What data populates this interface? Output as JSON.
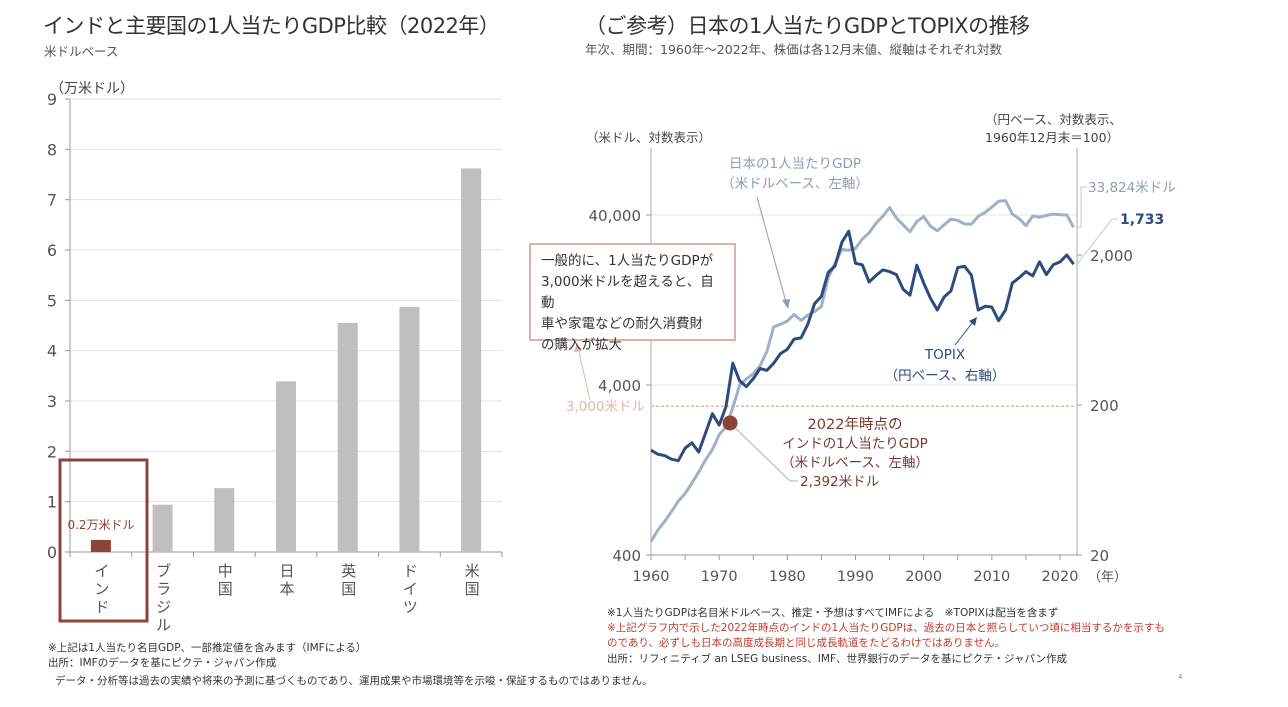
{
  "left": {
    "title": "インドと主要国の1人当たりGDP比較（2022年）",
    "subtitle": "米ドルベース",
    "unit_label": "（万米ドル）",
    "notes": [
      "※上記は1人当たり名目GDP、一部推定値を含みます（IMFによる）",
      "出所：IMFのデータを基にピクテ・ジャパン作成"
    ]
  },
  "right": {
    "title": "（ご参考）日本の1人当たりGDPとTOPIXの推移",
    "subtitle": "年次、期間：1960年～2022年、株価は各12月末値、縦軸はそれぞれ対数",
    "left_axis_label": "（米ドル、対数表示）",
    "right_axis_label_1": "（円ベース、対数表示、",
    "right_axis_label_2": "1960年12月末＝100）",
    "gdp_label_1": "日本の1人当たりGDP",
    "gdp_label_2": "（米ドルベース、左軸）",
    "topix_label_1": "TOPIX",
    "topix_label_2": "（円ベース、右軸）",
    "gdp_end_label": "33,824米ドル",
    "topix_end_label": "1,733",
    "callout_lines": [
      "一般的に、1人当たりGDPが",
      "3,000米ドルを超えると、自動",
      "車や家電などの耐久消費財",
      "の購入が拡大"
    ],
    "threshold_label": "3,000米ドル",
    "india_label_1": "2022年時点の",
    "india_label_2": "インドの1人当たりGDP",
    "india_label_3": "（米ドルベース、左軸）",
    "india_value_label": "2,392米ドル",
    "notes": [
      "※1人当たりGDPは名目米ドルベース、推定・予想はすべてIMFによる　※TOPIXは配当を含まず"
    ],
    "notes_red": [
      "※上記グラフ内で示した2022年時点のインドの1人当たりGDPは、過去の日本と照らしていつ頃に相当するかを示すも",
      "のであり、必ずしも日本の高度成長期と同じ成長軌道をたどるわけではありません。"
    ],
    "source": "出所：リフィニティブ an LSEG business、IMF、世界銀行のデータを基にピクテ・ジャパン作成"
  },
  "disclaimer": "データ・分析等は過去の実績や将来の予測に基づくものであり、運用成果や市場環境等を示唆・保証するものではありません。",
  "page_marker": "4",
  "colors": {
    "bar_gray": "#bfbfbf",
    "india": "#8b4436",
    "gdp_line": "#9fb0c8",
    "topix_line": "#2e4b7e",
    "threshold": "#e2b6aa",
    "callout_border": "#d9b3a6",
    "india_text": "#7a3a30",
    "note_red": "#c0392b"
  },
  "chart_data": [
    {
      "type": "bar",
      "title": "インドと主要国の1人当たりGDP比較（2022年）",
      "subtitle": "米ドルベース",
      "xlabel": "",
      "ylabel": "（万米ドル）",
      "ylim": [
        0,
        9
      ],
      "yticks": [
        "0",
        "1",
        "2",
        "3",
        "4",
        "5",
        "6",
        "7",
        "8",
        "9"
      ],
      "grid": true,
      "categories": [
        "インド",
        "ブラジル",
        "中国",
        "日本",
        "英国",
        "ドイツ",
        "米国"
      ],
      "values": [
        0.24,
        0.94,
        1.27,
        3.39,
        4.55,
        4.87,
        7.62
      ],
      "highlight": "インド",
      "data_labels": [
        {
          "category": "インド",
          "text": "0.2万米ドル"
        }
      ]
    },
    {
      "type": "line",
      "title": "（ご参考）日本の1人当たりGDPとTOPIXの推移",
      "subtitle": "年次、期間：1960年～2022年、株価は各12月末値、縦軸はそれぞれ対数",
      "xlabel": "（年）",
      "xlim": [
        1960,
        2022
      ],
      "xticks": [
        "1960",
        "1970",
        "1980",
        "1990",
        "2000",
        "2010",
        "2020"
      ],
      "y_left": {
        "label": "（米ドル、対数表示）",
        "scale": "log",
        "lim": [
          400,
          100000
        ],
        "ticks": [
          "400",
          "4,000",
          "40,000"
        ]
      },
      "y_right": {
        "label": "（円ベース、対数表示、1960年12月末＝100）",
        "scale": "log",
        "lim": [
          20,
          5000
        ],
        "ticks": [
          "20",
          "200",
          "2,000"
        ]
      },
      "grid": true,
      "x": [
        1960,
        1961,
        1962,
        1963,
        1964,
        1965,
        1966,
        1967,
        1968,
        1969,
        1970,
        1971,
        1972,
        1973,
        1974,
        1975,
        1976,
        1977,
        1978,
        1979,
        1980,
        1981,
        1982,
        1983,
        1984,
        1985,
        1986,
        1987,
        1988,
        1989,
        1990,
        1991,
        1992,
        1993,
        1994,
        1995,
        1996,
        1997,
        1998,
        1999,
        2000,
        2001,
        2002,
        2003,
        2004,
        2005,
        2006,
        2007,
        2008,
        2009,
        2010,
        2011,
        2012,
        2013,
        2014,
        2015,
        2016,
        2017,
        2018,
        2019,
        2020,
        2021,
        2022
      ],
      "series": [
        {
          "name": "日本の1人当たりGDP（米ドルベース、左軸）",
          "axis": "left",
          "values": [
            480,
            560,
            630,
            720,
            830,
            920,
            1060,
            1230,
            1450,
            1670,
            2040,
            2270,
            2950,
            3990,
            4350,
            4670,
            5200,
            6300,
            8800,
            9100,
            9500,
            10400,
            9600,
            10300,
            10800,
            11600,
            17100,
            20700,
            25100,
            24800,
            25400,
            28900,
            31400,
            35800,
            39300,
            44200,
            38400,
            35000,
            31900,
            36600,
            39200,
            34400,
            32300,
            35000,
            37800,
            37200,
            35400,
            35300,
            39300,
            41300,
            44500,
            48200,
            48600,
            40500,
            38100,
            34600,
            39400,
            38800,
            39800,
            40500,
            40100,
            40000,
            33824
          ]
        },
        {
          "name": "TOPIX（円ベース、右軸）",
          "axis": "right",
          "values": [
            100,
            94,
            92,
            87,
            85,
            103,
            112,
            97,
            130,
            175,
            147,
            195,
            380,
            290,
            265,
            300,
            350,
            340,
            380,
            440,
            470,
            550,
            560,
            690,
            950,
            1060,
            1530,
            1690,
            2430,
            2881,
            1760,
            1720,
            1320,
            1460,
            1590,
            1550,
            1480,
            1180,
            1080,
            1710,
            1300,
            1030,
            860,
            1050,
            1150,
            1650,
            1680,
            1470,
            860,
            910,
            900,
            730,
            860,
            1300,
            1410,
            1550,
            1450,
            1800,
            1480,
            1720,
            1800,
            2000,
            1733
          ]
        }
      ],
      "annotations": [
        {
          "text": "3,000米ドル",
          "type": "hline",
          "axis": "left",
          "value": 3000
        },
        {
          "text": "2022年時点のインドの1人当たりGDP（米ドルベース、左軸） 2,392米ドル",
          "type": "point",
          "axis": "left",
          "x": 1971.6,
          "y": 2392
        },
        {
          "text": "33,824米ドル",
          "series": "日本の1人当たりGDP",
          "x": 2022
        },
        {
          "text": "1,733",
          "series": "TOPIX",
          "x": 2022
        },
        {
          "text": "一般的に、1人当たりGDPが3,000米ドルを超えると、自動車や家電などの耐久消費財の購入が拡大",
          "type": "callout"
        }
      ]
    }
  ]
}
